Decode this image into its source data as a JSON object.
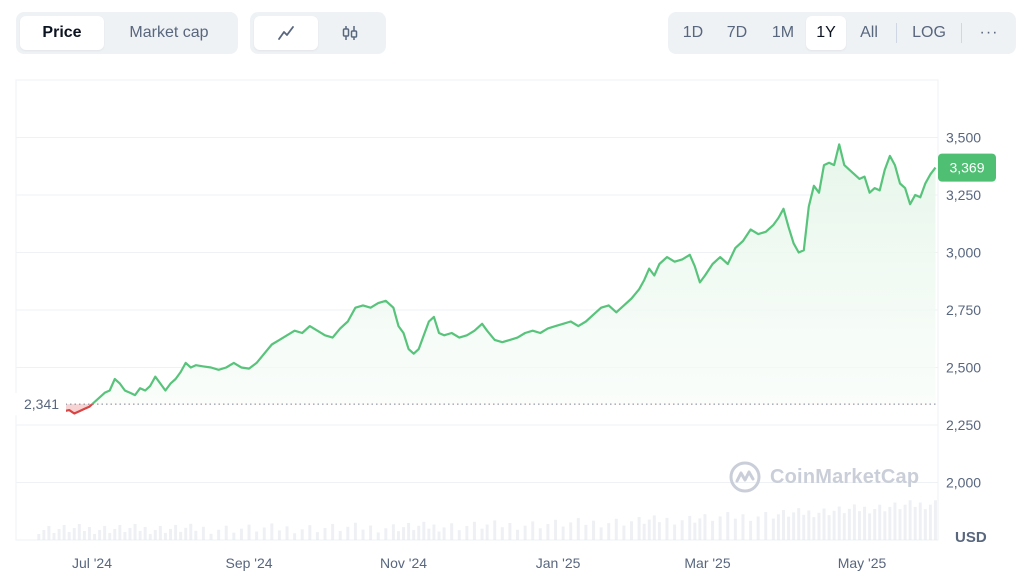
{
  "toolbar": {
    "metric_tabs": [
      {
        "label": "Price",
        "active": true
      },
      {
        "label": "Market cap",
        "active": false
      }
    ],
    "chart_type_icons": [
      "line-chart-icon",
      "candlestick-icon"
    ],
    "ranges": [
      {
        "label": "1D",
        "active": false
      },
      {
        "label": "7D",
        "active": false
      },
      {
        "label": "1M",
        "active": false
      },
      {
        "label": "1Y",
        "active": true
      },
      {
        "label": "All",
        "active": false
      }
    ],
    "log_label": "LOG",
    "more_label": "···"
  },
  "watermark": {
    "text": "CoinMarketCap"
  },
  "colors": {
    "up": "#16c784",
    "line_up": "#58c47b",
    "line_down": "#d94545",
    "fill_up": "#e6f6ea",
    "fill_down": "#f7d3d3",
    "grid": "#eff2f5",
    "axis_text": "#58667e",
    "badge": "#4fbf73"
  },
  "chart_data": {
    "type": "area",
    "title": "",
    "xlabel": "",
    "ylabel": "",
    "currency_label": "USD",
    "baseline_value": 2341,
    "baseline_label": "2,341",
    "current_value": 3369,
    "current_label": "3,369",
    "ylim": [
      1750,
      3750
    ],
    "yticks": [
      2000,
      2250,
      2500,
      2750,
      3000,
      3250,
      3500
    ],
    "ytick_labels": [
      "2,000",
      "2,250",
      "2,500",
      "2,750",
      "3,000",
      "3,250",
      "3,500"
    ],
    "xlim": [
      "2024-06-05",
      "2025-06-04"
    ],
    "xticks": [
      "2024-07-05",
      "2024-09-05",
      "2024-11-05",
      "2025-01-05",
      "2025-03-05",
      "2025-05-05"
    ],
    "xtick_labels": [
      "Jul '24",
      "Sep '24",
      "Nov '24",
      "Jan '25",
      "Mar '25",
      "May '25"
    ],
    "series": [
      {
        "points": [
          [
            "2024-06-14",
            2300
          ],
          [
            "2024-06-16",
            2330
          ],
          [
            "2024-06-18",
            2320
          ],
          [
            "2024-06-20",
            2340
          ],
          [
            "2024-06-22",
            2320
          ],
          [
            "2024-06-24",
            2310
          ],
          [
            "2024-06-26",
            2315
          ],
          [
            "2024-06-28",
            2300
          ],
          [
            "2024-06-30",
            2310
          ],
          [
            "2024-07-02",
            2320
          ],
          [
            "2024-07-04",
            2330
          ],
          [
            "2024-07-06",
            2350
          ],
          [
            "2024-07-08",
            2370
          ],
          [
            "2024-07-10",
            2390
          ],
          [
            "2024-07-12",
            2400
          ],
          [
            "2024-07-14",
            2450
          ],
          [
            "2024-07-16",
            2430
          ],
          [
            "2024-07-18",
            2400
          ],
          [
            "2024-07-20",
            2390
          ],
          [
            "2024-07-22",
            2380
          ],
          [
            "2024-07-24",
            2410
          ],
          [
            "2024-07-26",
            2400
          ],
          [
            "2024-07-28",
            2420
          ],
          [
            "2024-07-30",
            2460
          ],
          [
            "2024-08-01",
            2430
          ],
          [
            "2024-08-03",
            2400
          ],
          [
            "2024-08-05",
            2430
          ],
          [
            "2024-08-07",
            2450
          ],
          [
            "2024-08-09",
            2480
          ],
          [
            "2024-08-11",
            2520
          ],
          [
            "2024-08-13",
            2500
          ],
          [
            "2024-08-15",
            2510
          ],
          [
            "2024-08-18",
            2505
          ],
          [
            "2024-08-21",
            2500
          ],
          [
            "2024-08-24",
            2490
          ],
          [
            "2024-08-27",
            2500
          ],
          [
            "2024-08-30",
            2520
          ],
          [
            "2024-09-02",
            2500
          ],
          [
            "2024-09-05",
            2495
          ],
          [
            "2024-09-08",
            2520
          ],
          [
            "2024-09-11",
            2560
          ],
          [
            "2024-09-14",
            2600
          ],
          [
            "2024-09-17",
            2620
          ],
          [
            "2024-09-20",
            2640
          ],
          [
            "2024-09-23",
            2660
          ],
          [
            "2024-09-26",
            2650
          ],
          [
            "2024-09-29",
            2680
          ],
          [
            "2024-10-02",
            2660
          ],
          [
            "2024-10-05",
            2640
          ],
          [
            "2024-10-08",
            2630
          ],
          [
            "2024-10-11",
            2670
          ],
          [
            "2024-10-14",
            2700
          ],
          [
            "2024-10-17",
            2760
          ],
          [
            "2024-10-20",
            2770
          ],
          [
            "2024-10-23",
            2760
          ],
          [
            "2024-10-26",
            2780
          ],
          [
            "2024-10-29",
            2790
          ],
          [
            "2024-11-01",
            2760
          ],
          [
            "2024-11-03",
            2680
          ],
          [
            "2024-11-05",
            2650
          ],
          [
            "2024-11-07",
            2580
          ],
          [
            "2024-11-09",
            2560
          ],
          [
            "2024-11-11",
            2580
          ],
          [
            "2024-11-13",
            2640
          ],
          [
            "2024-11-15",
            2700
          ],
          [
            "2024-11-17",
            2720
          ],
          [
            "2024-11-19",
            2650
          ],
          [
            "2024-11-21",
            2640
          ],
          [
            "2024-11-24",
            2650
          ],
          [
            "2024-11-27",
            2630
          ],
          [
            "2024-11-30",
            2640
          ],
          [
            "2024-12-03",
            2660
          ],
          [
            "2024-12-06",
            2690
          ],
          [
            "2024-12-08",
            2660
          ],
          [
            "2024-12-11",
            2620
          ],
          [
            "2024-12-14",
            2610
          ],
          [
            "2024-12-17",
            2620
          ],
          [
            "2024-12-20",
            2630
          ],
          [
            "2024-12-23",
            2650
          ],
          [
            "2024-12-26",
            2660
          ],
          [
            "2024-12-29",
            2650
          ],
          [
            "2025-01-01",
            2670
          ],
          [
            "2025-01-04",
            2680
          ],
          [
            "2025-01-07",
            2690
          ],
          [
            "2025-01-10",
            2700
          ],
          [
            "2025-01-13",
            2680
          ],
          [
            "2025-01-16",
            2700
          ],
          [
            "2025-01-19",
            2730
          ],
          [
            "2025-01-22",
            2760
          ],
          [
            "2025-01-25",
            2770
          ],
          [
            "2025-01-28",
            2740
          ],
          [
            "2025-01-31",
            2770
          ],
          [
            "2025-02-03",
            2800
          ],
          [
            "2025-02-06",
            2840
          ],
          [
            "2025-02-08",
            2880
          ],
          [
            "2025-02-10",
            2930
          ],
          [
            "2025-02-12",
            2900
          ],
          [
            "2025-02-14",
            2950
          ],
          [
            "2025-02-17",
            2980
          ],
          [
            "2025-02-20",
            2960
          ],
          [
            "2025-02-23",
            2970
          ],
          [
            "2025-02-26",
            2990
          ],
          [
            "2025-02-28",
            2940
          ],
          [
            "2025-03-02",
            2870
          ],
          [
            "2025-03-04",
            2900
          ],
          [
            "2025-03-07",
            2950
          ],
          [
            "2025-03-10",
            2980
          ],
          [
            "2025-03-13",
            2950
          ],
          [
            "2025-03-16",
            3020
          ],
          [
            "2025-03-19",
            3050
          ],
          [
            "2025-03-22",
            3100
          ],
          [
            "2025-03-25",
            3080
          ],
          [
            "2025-03-28",
            3090
          ],
          [
            "2025-03-31",
            3120
          ],
          [
            "2025-04-02",
            3150
          ],
          [
            "2025-04-04",
            3190
          ],
          [
            "2025-04-06",
            3110
          ],
          [
            "2025-04-08",
            3040
          ],
          [
            "2025-04-10",
            3000
          ],
          [
            "2025-04-12",
            3010
          ],
          [
            "2025-04-14",
            3200
          ],
          [
            "2025-04-16",
            3290
          ],
          [
            "2025-04-18",
            3260
          ],
          [
            "2025-04-20",
            3380
          ],
          [
            "2025-04-22",
            3390
          ],
          [
            "2025-04-24",
            3380
          ],
          [
            "2025-04-26",
            3470
          ],
          [
            "2025-04-28",
            3380
          ],
          [
            "2025-04-30",
            3360
          ],
          [
            "2025-05-02",
            3340
          ],
          [
            "2025-05-04",
            3320
          ],
          [
            "2025-05-06",
            3330
          ],
          [
            "2025-05-08",
            3260
          ],
          [
            "2025-05-10",
            3280
          ],
          [
            "2025-05-12",
            3270
          ],
          [
            "2025-05-14",
            3360
          ],
          [
            "2025-05-16",
            3420
          ],
          [
            "2025-05-18",
            3380
          ],
          [
            "2025-05-20",
            3300
          ],
          [
            "2025-05-22",
            3280
          ],
          [
            "2025-05-24",
            3210
          ],
          [
            "2025-05-26",
            3250
          ],
          [
            "2025-05-28",
            3240
          ],
          [
            "2025-05-30",
            3300
          ],
          [
            "2025-06-01",
            3340
          ],
          [
            "2025-06-03",
            3369
          ]
        ]
      }
    ]
  }
}
